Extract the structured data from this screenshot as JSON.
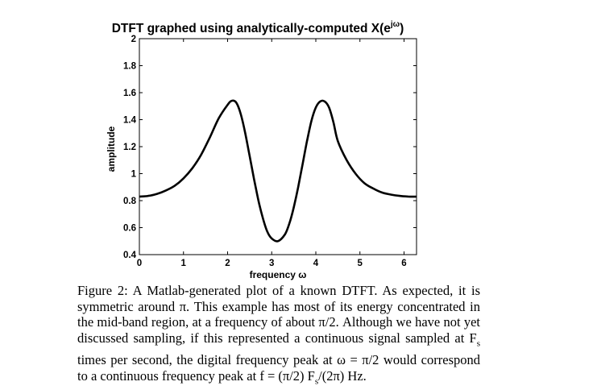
{
  "chart_data": {
    "type": "line",
    "title_main": "DTFT graphed using analytically-computed X(e",
    "title_sup": "jω",
    "title_close": ")",
    "xlabel": "frequency ω",
    "ylabel": "amplitude",
    "xlim": [
      0,
      6.2832
    ],
    "ylim": [
      0.4,
      2
    ],
    "xticks": [
      0,
      1,
      2,
      3,
      4,
      5,
      6
    ],
    "yticks": [
      0.4,
      0.6,
      0.8,
      1,
      1.2,
      1.4,
      1.6,
      1.8,
      2
    ],
    "ytick_labels": [
      "0.4",
      "0.6",
      "0.8",
      "1",
      "1.2",
      "1.4",
      "1.6",
      "1.8",
      "2"
    ],
    "xtick_labels": [
      "0",
      "1",
      "2",
      "3",
      "4",
      "5",
      "6"
    ],
    "grid": false,
    "series": [
      {
        "color": "#000000",
        "x": [
          0,
          0.2,
          0.4,
          0.6,
          0.8,
          1.0,
          1.2,
          1.4,
          1.6,
          1.8,
          2.0,
          2.1,
          2.2,
          2.3,
          2.4,
          2.5,
          2.6,
          2.7,
          2.8,
          2.9,
          3.0,
          3.1416,
          3.3,
          3.4,
          3.5,
          3.6,
          3.7,
          3.8,
          3.9,
          4.0,
          4.1,
          4.2,
          4.3,
          4.4,
          4.5,
          4.7,
          4.9,
          5.1,
          5.3,
          5.5,
          5.7,
          5.9,
          6.1,
          6.2832
        ],
        "y": [
          0.83,
          0.835,
          0.85,
          0.875,
          0.91,
          0.965,
          1.04,
          1.14,
          1.27,
          1.41,
          1.51,
          1.54,
          1.525,
          1.44,
          1.3,
          1.13,
          0.96,
          0.8,
          0.67,
          0.57,
          0.52,
          0.5,
          0.55,
          0.63,
          0.75,
          0.9,
          1.07,
          1.24,
          1.39,
          1.49,
          1.535,
          1.535,
          1.49,
          1.38,
          1.24,
          1.1,
          1.0,
          0.93,
          0.89,
          0.86,
          0.845,
          0.835,
          0.83,
          0.83
        ]
      }
    ]
  },
  "caption": "Figure 2: A Matlab-generated plot of a known DTFT.  As expected, it is symmetric around π.  This example has most of its energy concentrated in the mid-band region, at a frequency of about π/2.  Although we have not yet discussed sampling, if this represented a continuous signal sampled at Fs times per second, the digital frequency peak at ω = π/2 would correspond to a continuous frequency peak at f = (π/2) Fs/(2π) Hz."
}
